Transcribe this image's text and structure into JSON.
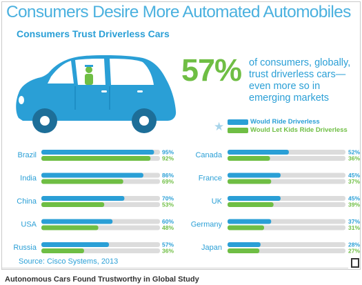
{
  "colors": {
    "title": "#4bb1df",
    "blue": "#2a9fd6",
    "green": "#6fbe44",
    "track": "#dcdcdc",
    "car": "#2a9fd6"
  },
  "header": {
    "title": "Consumers Desire More Automated Automobiles",
    "subtitle": "Consumers Trust Driverless Cars"
  },
  "stat": {
    "percent": "57%",
    "text": "of consumers, globally, trust driverless cars—even more so in emerging markets"
  },
  "legend": [
    {
      "label": "Would Ride Driverless",
      "color": "#2a9fd6"
    },
    {
      "label": "Would Let Kids Ride Driverless",
      "color": "#6fbe44"
    }
  ],
  "chart_data": {
    "type": "bar",
    "orientation": "horizontal",
    "xlim": [
      0,
      100
    ],
    "series": [
      {
        "name": "Would Ride Driverless",
        "color": "#2a9fd6"
      },
      {
        "name": "Would Let Kids Ride Driverless",
        "color": "#6fbe44"
      }
    ],
    "categories": [
      "Brazil",
      "India",
      "China",
      "USA",
      "Russia",
      "Canada",
      "France",
      "UK",
      "Germany",
      "Japan"
    ],
    "values": [
      [
        95,
        92
      ],
      [
        86,
        69
      ],
      [
        70,
        53
      ],
      [
        60,
        48
      ],
      [
        57,
        36
      ],
      [
        52,
        36
      ],
      [
        45,
        37
      ],
      [
        45,
        39
      ],
      [
        37,
        31
      ],
      [
        28,
        27
      ]
    ],
    "value_labels": [
      [
        "95%",
        "92%"
      ],
      [
        "86%",
        "69%"
      ],
      [
        "70%",
        "53%"
      ],
      [
        "60%",
        "48%"
      ],
      [
        "57%",
        "36%"
      ],
      [
        "52%",
        "36%"
      ],
      [
        "45%",
        "37%"
      ],
      [
        "45%",
        "39%"
      ],
      [
        "37%",
        "31%"
      ],
      [
        "28%",
        "27%"
      ]
    ]
  },
  "source": "Source: Cisco Systems, 2013",
  "caption": "Autonomous Cars Found Trustworthy in Global Study"
}
